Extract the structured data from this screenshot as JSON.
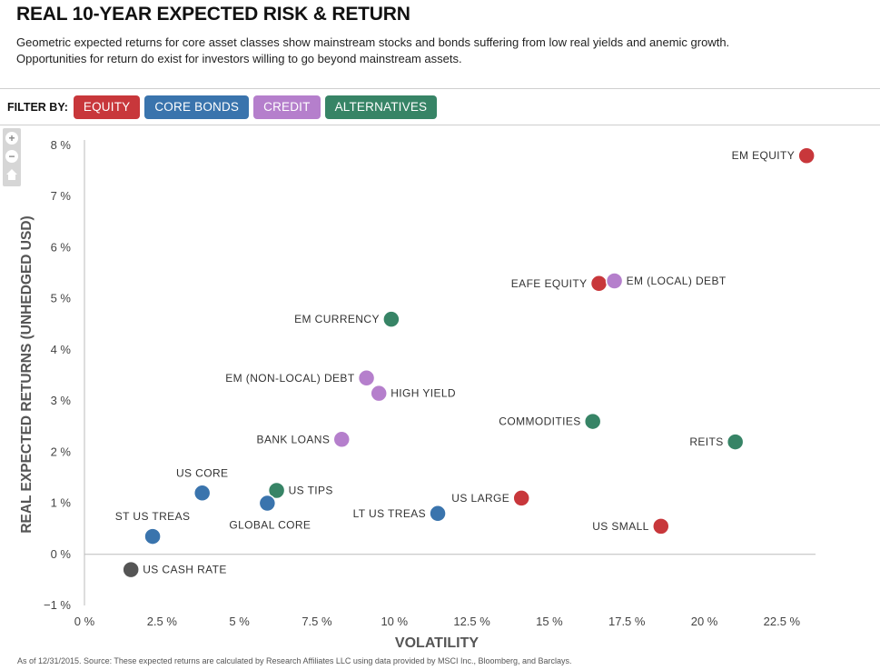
{
  "header": {
    "title": "REAL 10-YEAR EXPECTED RISK & RETURN",
    "subtitle_line1": "Geometric expected returns for core asset classes show mainstream stocks and bonds suffering from low real yields and anemic growth.",
    "subtitle_line2": "Opportunities for return do exist for investors willing to go beyond mainstream assets."
  },
  "filter": {
    "label": "FILTER BY:",
    "buttons": [
      {
        "label": "EQUITY",
        "color": "#c8373b"
      },
      {
        "label": "CORE BONDS",
        "color": "#3a74ad"
      },
      {
        "label": "CREDIT",
        "color": "#b57fcc"
      },
      {
        "label": "ALTERNATIVES",
        "color": "#378466"
      }
    ]
  },
  "zoom_controls": {
    "zoom_in": "+",
    "zoom_out": "−"
  },
  "chart_data": {
    "type": "scatter",
    "xlabel": "VOLATILITY",
    "ylabel": "REAL EXPECTED RETURNS (UNHEDGED USD)",
    "xlim": [
      0,
      23.5
    ],
    "ylim": [
      -1,
      8
    ],
    "x_ticks": [
      0,
      2.5,
      5,
      7.5,
      10,
      12.5,
      15,
      17.5,
      20,
      22.5
    ],
    "x_tick_labels": [
      "0 %",
      "2.5 %",
      "5 %",
      "7.5 %",
      "10 %",
      "12.5 %",
      "15 %",
      "17.5 %",
      "20 %",
      "22.5 %"
    ],
    "y_ticks": [
      -1,
      0,
      1,
      2,
      3,
      4,
      5,
      6,
      7,
      8
    ],
    "y_tick_labels": [
      "−1 %",
      "0 %",
      "1 %",
      "2 %",
      "3 %",
      "4 %",
      "5 %",
      "6 %",
      "7 %",
      "8 %"
    ],
    "grid": false,
    "colors": {
      "equity": "#c8373b",
      "core_bonds": "#3a74ad",
      "credit": "#b57fcc",
      "alternatives": "#378466",
      "cash": "#555555"
    },
    "points": [
      {
        "label": "EM EQUITY",
        "x": 23.3,
        "y": 7.8,
        "category": "equity",
        "label_pos": "left"
      },
      {
        "label": "EAFE EQUITY",
        "x": 16.6,
        "y": 5.3,
        "category": "equity",
        "label_pos": "left"
      },
      {
        "label": "EM (LOCAL) DEBT",
        "x": 17.1,
        "y": 5.35,
        "category": "credit",
        "label_pos": "right"
      },
      {
        "label": "EM CURRENCY",
        "x": 9.9,
        "y": 4.6,
        "category": "alternatives",
        "label_pos": "left"
      },
      {
        "label": "EM (NON-LOCAL) DEBT",
        "x": 9.1,
        "y": 3.45,
        "category": "credit",
        "label_pos": "left"
      },
      {
        "label": "HIGH YIELD",
        "x": 9.5,
        "y": 3.15,
        "category": "credit",
        "label_pos": "right"
      },
      {
        "label": "COMMODITIES",
        "x": 16.4,
        "y": 2.6,
        "category": "alternatives",
        "label_pos": "left"
      },
      {
        "label": "REITS",
        "x": 21.0,
        "y": 2.2,
        "category": "alternatives",
        "label_pos": "left"
      },
      {
        "label": "BANK LOANS",
        "x": 8.3,
        "y": 2.25,
        "category": "credit",
        "label_pos": "left"
      },
      {
        "label": "US CORE",
        "x": 3.8,
        "y": 1.2,
        "category": "core_bonds",
        "label_pos": "above"
      },
      {
        "label": "US TIPS",
        "x": 6.2,
        "y": 1.25,
        "category": "alternatives",
        "label_pos": "right"
      },
      {
        "label": "GLOBAL CORE",
        "x": 5.9,
        "y": 1.0,
        "category": "core_bonds",
        "label_pos": "below"
      },
      {
        "label": "US LARGE",
        "x": 14.1,
        "y": 1.1,
        "category": "equity",
        "label_pos": "left"
      },
      {
        "label": "LT US TREAS",
        "x": 11.4,
        "y": 0.8,
        "category": "core_bonds",
        "label_pos": "left"
      },
      {
        "label": "US SMALL",
        "x": 18.6,
        "y": 0.55,
        "category": "equity",
        "label_pos": "left"
      },
      {
        "label": "ST US TREAS",
        "x": 2.2,
        "y": 0.35,
        "category": "core_bonds",
        "label_pos": "above"
      },
      {
        "label": "US CASH RATE",
        "x": 1.5,
        "y": -0.3,
        "category": "cash",
        "label_pos": "right"
      }
    ]
  },
  "footnote": "As of 12/31/2015. Source: These expected returns are calculated by Research Affiliates LLC using data provided by MSCI Inc., Bloomberg, and Barclays."
}
